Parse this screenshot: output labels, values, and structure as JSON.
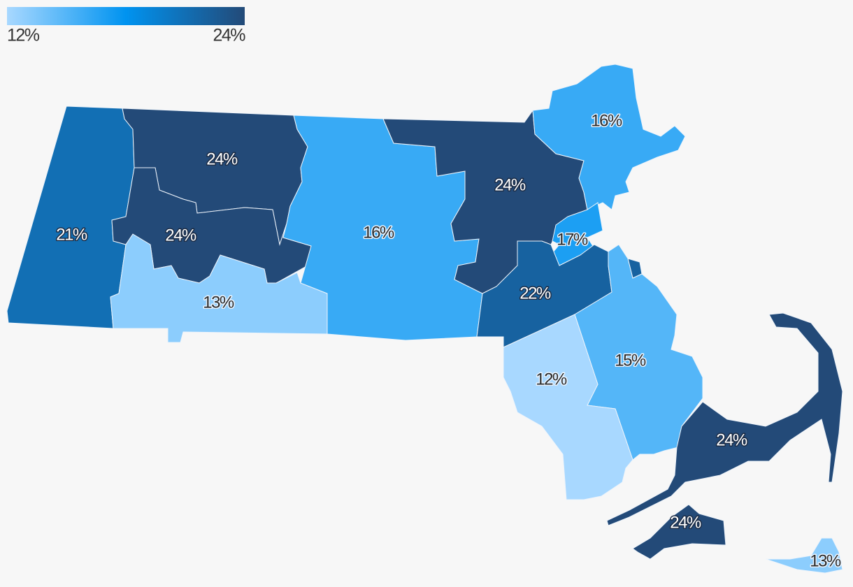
{
  "chart_data": {
    "type": "choropleth",
    "values": [
      21,
      24,
      24,
      13,
      16,
      24,
      16,
      17,
      22,
      15,
      12,
      24,
      24,
      13
    ],
    "value_labels": [
      "21%",
      "24%",
      "24%",
      "13%",
      "16%",
      "24%",
      "16%",
      "17%",
      "22%",
      "15%",
      "12%",
      "24%",
      "24%",
      "13%"
    ],
    "colorscale": [
      "#a8d8ff",
      "#0093f0",
      "#234a78"
    ],
    "colorbar": {
      "ticks": [
        {
          "value": 12,
          "label": "12%"
        },
        {
          "value": 24,
          "label": "24%"
        }
      ]
    }
  }
}
